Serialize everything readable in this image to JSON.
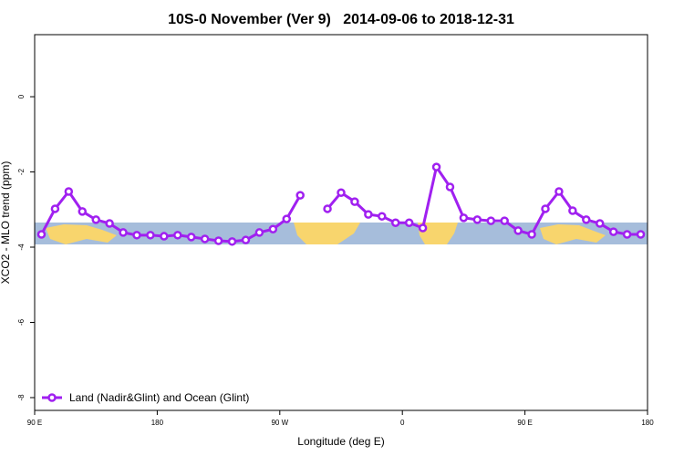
{
  "chart_data": {
    "type": "line",
    "title": "10S-0 November (Ver 9)   2014-09-06 to 2018-12-31",
    "xlabel": "Longitude (deg E)",
    "ylabel": "XCO2 - MLO trend (ppm)",
    "xlim": [
      90,
      540
    ],
    "ylim": [
      -8.34,
      1.65
    ],
    "xticks": [
      {
        "value": 90,
        "label": "90 E"
      },
      {
        "value": 180,
        "label": "180"
      },
      {
        "value": 270,
        "label": "90 W"
      },
      {
        "value": 360,
        "label": "0"
      },
      {
        "value": 450,
        "label": "90 E"
      },
      {
        "value": 540,
        "label": "180"
      }
    ],
    "yticks": [
      0,
      -2,
      -4,
      -6,
      -8
    ],
    "legend": "bottomleft",
    "x": [
      95,
      105,
      115,
      125,
      135,
      145,
      155,
      165,
      175,
      185,
      195,
      205,
      215,
      225,
      235,
      245,
      255,
      265,
      275,
      285,
      295,
      305,
      315,
      325,
      335,
      345,
      355,
      365,
      375,
      385,
      395,
      405,
      415,
      425,
      435,
      445,
      455,
      465,
      475,
      485,
      495,
      505,
      515,
      525,
      535
    ],
    "series": [
      {
        "name": "Land (Nadir&Glint) and Ocean (Glint)",
        "color": "#a020f0",
        "values": [
          -3.66,
          -2.98,
          -2.52,
          -3.05,
          -3.27,
          -3.37,
          -3.61,
          -3.68,
          -3.68,
          -3.71,
          -3.68,
          -3.73,
          -3.78,
          -3.83,
          -3.85,
          -3.81,
          -3.61,
          -3.52,
          -3.25,
          -2.62,
          null,
          -2.98,
          -2.55,
          -2.79,
          -3.13,
          -3.18,
          -3.35,
          -3.35,
          -3.49,
          -1.87,
          -2.4,
          -3.22,
          -3.27,
          -3.3,
          -3.3,
          -3.56,
          -3.66,
          -2.98,
          -2.52,
          -3.03,
          -3.27,
          -3.37,
          -3.59,
          -3.66,
          -3.66
        ]
      }
    ]
  }
}
